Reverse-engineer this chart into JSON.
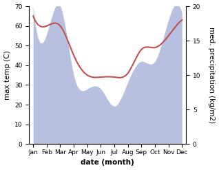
{
  "months": [
    "Jan",
    "Feb",
    "Mar",
    "Apr",
    "May",
    "Jun",
    "Jul",
    "Aug",
    "Sep",
    "Oct",
    "Nov",
    "Dec"
  ],
  "month_indices": [
    0,
    1,
    2,
    3,
    4,
    5,
    6,
    7,
    8,
    9,
    10,
    11
  ],
  "temperature": [
    65,
    60,
    60,
    45,
    35,
    34,
    34,
    36,
    48,
    49,
    55,
    63
  ],
  "precipitation": [
    20,
    16,
    20,
    10,
    8,
    8,
    5.5,
    9,
    12,
    12,
    18,
    19
  ],
  "temp_color": "#c0504d",
  "precip_color": "#b8c0e0",
  "background_color": "#ffffff",
  "ylabel_left": "max temp (C)",
  "ylabel_right": "med. precipitation (kg/m2)",
  "xlabel": "date (month)",
  "ylim_left": [
    0,
    70
  ],
  "ylim_right": [
    0,
    20
  ],
  "label_fontsize": 7.5,
  "tick_fontsize": 6.5,
  "line_width": 1.5,
  "xlim": [
    -0.3,
    11.3
  ]
}
